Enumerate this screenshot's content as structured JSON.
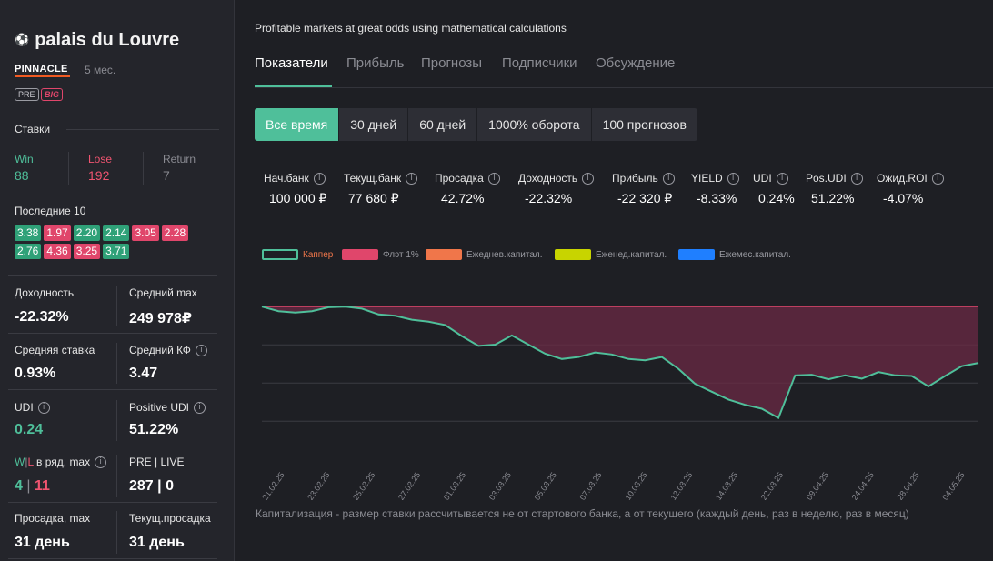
{
  "sidebar": {
    "title": "palais du Louvre",
    "ball_icon": "⚽",
    "bookmaker": "PINNACLE",
    "age": "5 мес.",
    "badge_pre": "PRE",
    "badge_big": "BIG",
    "bets_label": "Ставки",
    "win_label": "Win",
    "win_value": "88",
    "lose_label": "Lose",
    "lose_value": "192",
    "return_label": "Return",
    "return_value": "7",
    "last10_label": "Последние 10",
    "last10": [
      {
        "v": "3.38",
        "c": "g"
      },
      {
        "v": "1.97",
        "c": "r"
      },
      {
        "v": "2.20",
        "c": "g"
      },
      {
        "v": "2.14",
        "c": "g"
      },
      {
        "v": "3.05",
        "c": "r"
      },
      {
        "v": "2.28",
        "c": "r"
      },
      {
        "v": "2.76",
        "c": "g"
      },
      {
        "v": "4.36",
        "c": "r"
      },
      {
        "v": "3.25",
        "c": "r"
      },
      {
        "v": "3.71",
        "c": "g"
      }
    ],
    "stats": {
      "profitability_label": "Доходность",
      "profitability_value": "-22.32%",
      "avg_max_label": "Средний max",
      "avg_max_value": "249 978₽",
      "avg_stake_label": "Средняя ставка",
      "avg_stake_value": "0.93%",
      "avg_kf_label": "Средний КФ",
      "avg_kf_value": "3.47",
      "udi_label": "UDI",
      "udi_value": "0.24",
      "pos_udi_label": "Positive UDI",
      "pos_udi_value": "51.22%",
      "wl_w": "W",
      "wl_sep": "|",
      "wl_l": "L",
      "wl_rest": " в ряд, max",
      "wl_w_value": "4",
      "wl_sep_value": " | ",
      "wl_l_value": "11",
      "pre_live_label": "PRE | LIVE",
      "pre_live_value": "287 | 0",
      "drawdown_max_label": "Просадка, max",
      "drawdown_max_value": "31 день",
      "cur_drawdown_label": "Текущ.просадка",
      "cur_drawdown_value": "31 день"
    }
  },
  "main": {
    "tagline": "Profitable markets at great odds using mathematical calculations",
    "tabs": [
      "Показатели",
      "Прибыль",
      "Прогнозы",
      "Подписчики",
      "Обсуждение"
    ],
    "periods": [
      "Все время",
      "30 дней",
      "60 дней",
      "1000% оборота",
      "100 прогнозов"
    ],
    "kpis": [
      {
        "label": "Нач.банк",
        "value": "100 000 ₽"
      },
      {
        "label": "Текущ.банк",
        "value": "77 680 ₽"
      },
      {
        "label": "Просадка",
        "value": "42.72%"
      },
      {
        "label": "Доходность",
        "value": "-22.32%"
      },
      {
        "label": "Прибыль",
        "value": "-22 320 ₽"
      },
      {
        "label": "YIELD",
        "value": "-8.33%"
      },
      {
        "label": "UDI",
        "value": "0.24%"
      },
      {
        "label": "Pos.UDI",
        "value": "51.22%"
      },
      {
        "label": "Ожид.ROI",
        "value": "-4.07%"
      }
    ],
    "footnote": "Капитализация - размер ставки рассчитывается не от стартового банка, а от текущего (каждый день, раз в неделю, раз в месяц)"
  },
  "chart_data": {
    "type": "area",
    "title": "",
    "legend": [
      {
        "name": "Каппер",
        "color": "#4fbf9a",
        "text_color": "#f0764a"
      },
      {
        "name": "Флэт 1%",
        "color": "#e0466b",
        "text_color": "#9a9ba2"
      },
      {
        "name": "Ежеднев.капитал.",
        "color": "#f0764a",
        "text_color": "#9a9ba2"
      },
      {
        "name": "Еженед.капитал.",
        "color": "#c8d400",
        "text_color": "#9a9ba2"
      },
      {
        "name": "Ежемес.капитал.",
        "color": "#1f7fff",
        "text_color": "#9a9ba2"
      }
    ],
    "x_ticks": [
      "21.02.25",
      "23.02.25",
      "25.02.25",
      "27.02.25",
      "01.03.25",
      "03.03.25",
      "05.03.25",
      "07.03.25",
      "10.03.25",
      "12.03.25",
      "14.03.25",
      "22.03.25",
      "09.04.25",
      "24.04.25",
      "28.04.25",
      "04.05.25"
    ],
    "baseline": 100000,
    "ylim": [
      76000,
      101000
    ],
    "series": [
      {
        "name": "Каппер",
        "values": [
          100000,
          99300,
          99100,
          99300,
          99900,
          100000,
          99700,
          98800,
          98600,
          98000,
          97700,
          97200,
          95500,
          94000,
          94200,
          95600,
          94200,
          92800,
          92000,
          92300,
          93000,
          92700,
          92000,
          91800,
          92300,
          90500,
          88200,
          87000,
          85800,
          85000,
          84400,
          83000,
          89500,
          89600,
          88900,
          89500,
          89000,
          90000,
          89500,
          89400,
          87800,
          89400,
          90900,
          91400
        ]
      }
    ]
  }
}
